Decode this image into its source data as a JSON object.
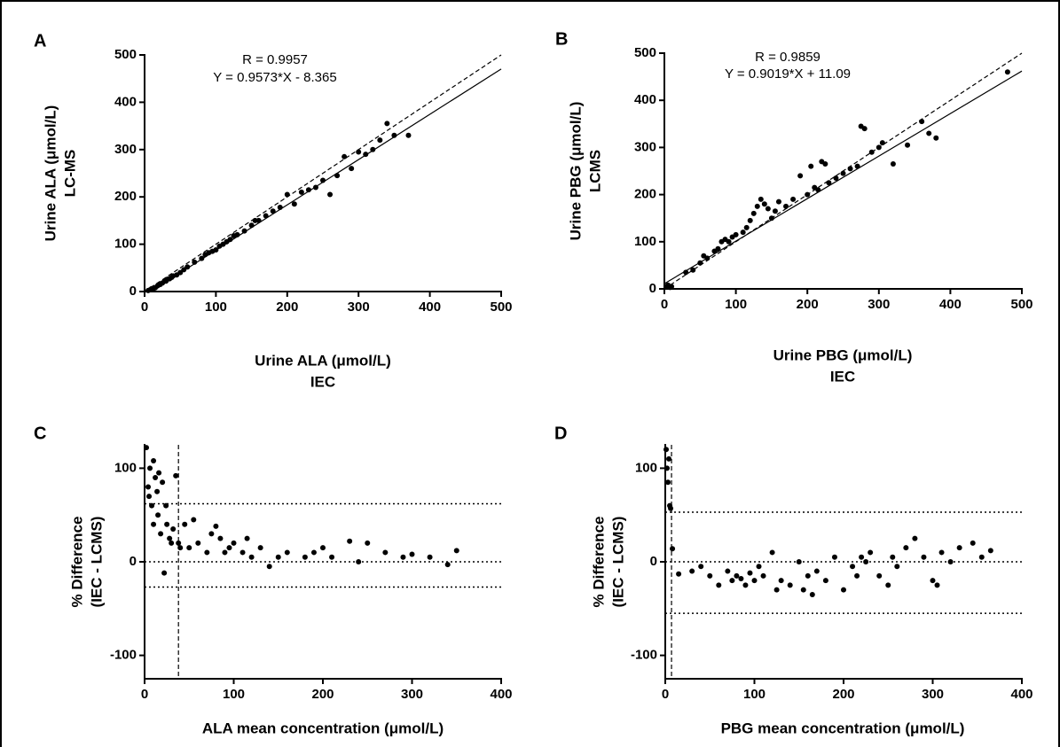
{
  "chart_data": [
    {
      "type": "scatter",
      "panel": "A",
      "annotations": [
        "R = 0.9957",
        "Y = 0.9573*X - 8.365"
      ],
      "xlabel": [
        "Urine ALA (μmol/L)",
        "IEC"
      ],
      "ylabel": [
        "Urine ALA (μmol/L)",
        "LC-MS"
      ],
      "xlim": [
        0,
        500
      ],
      "ylim": [
        0,
        500
      ],
      "xticks": [
        0,
        100,
        200,
        300,
        400,
        500
      ],
      "yticks": [
        0,
        100,
        200,
        300,
        400,
        500
      ],
      "identity_line": true,
      "fit_line": {
        "slope": 0.9573,
        "intercept": -8.365
      },
      "color": "#000000",
      "x": [
        5,
        8,
        10,
        12,
        15,
        18,
        20,
        22,
        25,
        28,
        30,
        32,
        35,
        38,
        40,
        45,
        50,
        55,
        60,
        70,
        80,
        85,
        90,
        95,
        100,
        105,
        110,
        115,
        120,
        125,
        130,
        140,
        150,
        155,
        160,
        170,
        180,
        190,
        200,
        210,
        220,
        230,
        240,
        250,
        260,
        270,
        280,
        290,
        300,
        310,
        320,
        330,
        340,
        350,
        370
      ],
      "values": [
        2,
        4,
        6,
        5,
        8,
        12,
        14,
        15,
        18,
        22,
        22,
        26,
        27,
        30,
        33,
        35,
        40,
        46,
        52,
        62,
        70,
        78,
        82,
        85,
        88,
        96,
        100,
        105,
        110,
        118,
        120,
        128,
        140,
        150,
        150,
        160,
        170,
        178,
        205,
        185,
        210,
        215,
        220,
        235,
        205,
        245,
        285,
        260,
        295,
        290,
        300,
        320,
        355,
        330,
        330
      ]
    },
    {
      "type": "scatter",
      "panel": "B",
      "annotations": [
        "R = 0.9859",
        "Y = 0.9019*X + 11.09"
      ],
      "xlabel": [
        "Urine PBG (μmol/L)",
        "IEC"
      ],
      "ylabel": [
        "Urine PBG (μmol/L)",
        "LCMS"
      ],
      "xlim": [
        0,
        500
      ],
      "ylim": [
        0,
        500
      ],
      "xticks": [
        0,
        100,
        200,
        300,
        400,
        500
      ],
      "yticks": [
        0,
        100,
        200,
        300,
        400,
        500
      ],
      "identity_line": true,
      "fit_line": {
        "slope": 0.9019,
        "intercept": 11.09
      },
      "color": "#000000",
      "x": [
        3,
        5,
        8,
        10,
        30,
        40,
        50,
        55,
        60,
        70,
        75,
        80,
        85,
        90,
        95,
        100,
        110,
        115,
        120,
        125,
        130,
        135,
        140,
        145,
        150,
        155,
        160,
        170,
        180,
        190,
        200,
        205,
        210,
        215,
        220,
        225,
        230,
        240,
        250,
        260,
        270,
        275,
        280,
        290,
        300,
        305,
        320,
        340,
        360,
        370,
        380,
        480
      ],
      "values": [
        5,
        8,
        3,
        5,
        35,
        40,
        55,
        70,
        65,
        80,
        85,
        100,
        105,
        100,
        110,
        115,
        120,
        130,
        145,
        160,
        175,
        190,
        180,
        170,
        150,
        165,
        185,
        175,
        190,
        240,
        200,
        260,
        215,
        210,
        270,
        265,
        225,
        235,
        245,
        255,
        260,
        345,
        340,
        290,
        300,
        310,
        265,
        305,
        355,
        330,
        320,
        460
      ]
    },
    {
      "type": "scatter",
      "panel": "C",
      "xlabel": [
        "ALA mean concentration (μmol/L)"
      ],
      "ylabel": [
        "% Difference",
        "(IEC - LCMS)"
      ],
      "xlim": [
        0,
        400
      ],
      "ylim": [
        -125,
        125
      ],
      "xticks": [
        0,
        100,
        200,
        300,
        400
      ],
      "yticks": [
        -100,
        0,
        100
      ],
      "hlines": [
        62,
        0,
        -27
      ],
      "vline": 38,
      "color": "#000000",
      "x": [
        2,
        4,
        5,
        6,
        8,
        10,
        10,
        12,
        14,
        15,
        16,
        18,
        20,
        22,
        24,
        25,
        28,
        30,
        32,
        35,
        38,
        40,
        45,
        50,
        55,
        60,
        70,
        75,
        80,
        85,
        90,
        95,
        100,
        110,
        115,
        120,
        130,
        140,
        150,
        160,
        180,
        190,
        200,
        210,
        230,
        240,
        250,
        270,
        290,
        300,
        320,
        340,
        350
      ],
      "values": [
        122,
        80,
        70,
        100,
        60,
        108,
        40,
        90,
        75,
        50,
        95,
        30,
        85,
        -12,
        60,
        40,
        25,
        20,
        35,
        92,
        20,
        15,
        40,
        15,
        45,
        20,
        10,
        30,
        38,
        25,
        10,
        15,
        20,
        10,
        25,
        5,
        15,
        -5,
        5,
        10,
        5,
        10,
        15,
        5,
        22,
        0,
        20,
        10,
        5,
        8,
        5,
        -3,
        12
      ]
    },
    {
      "type": "scatter",
      "panel": "D",
      "xlabel": [
        "PBG mean concentration (μmol/L)"
      ],
      "ylabel": [
        "% Difference",
        "(IEC - LCMS)"
      ],
      "xlim": [
        0,
        400
      ],
      "ylim": [
        -125,
        125
      ],
      "xticks": [
        0,
        100,
        200,
        300,
        400
      ],
      "yticks": [
        -100,
        0,
        100
      ],
      "hlines": [
        53,
        0,
        -55
      ],
      "vline": 7,
      "color": "#000000",
      "x": [
        1,
        2,
        3,
        4,
        5,
        6,
        8,
        15,
        30,
        40,
        50,
        60,
        70,
        75,
        80,
        85,
        90,
        95,
        100,
        105,
        110,
        120,
        125,
        130,
        140,
        150,
        155,
        160,
        165,
        170,
        180,
        190,
        200,
        210,
        215,
        220,
        225,
        230,
        240,
        250,
        255,
        260,
        270,
        280,
        290,
        300,
        305,
        310,
        320,
        330,
        345,
        355,
        365
      ],
      "values": [
        120,
        100,
        85,
        110,
        60,
        57,
        14,
        -13,
        -10,
        -5,
        -15,
        -25,
        -10,
        -20,
        -15,
        -18,
        -25,
        -12,
        -20,
        -5,
        -15,
        10,
        -30,
        -20,
        -25,
        0,
        -30,
        -15,
        -35,
        -10,
        -20,
        5,
        -30,
        -5,
        -15,
        5,
        0,
        10,
        -15,
        -25,
        5,
        -5,
        15,
        25,
        5,
        -20,
        -25,
        10,
        0,
        15,
        20,
        5,
        12
      ]
    }
  ]
}
